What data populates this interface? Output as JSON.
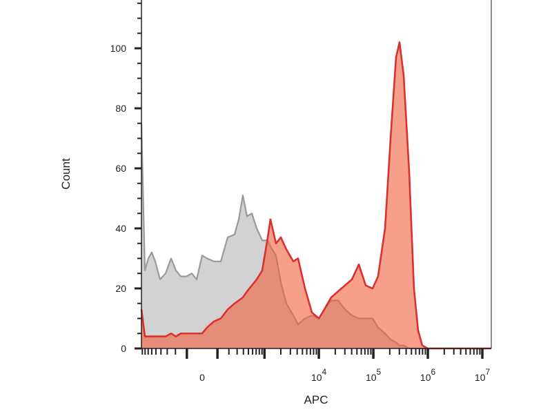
{
  "chart_data": {
    "type": "area",
    "title": "",
    "xlabel": "APC",
    "ylabel": "Count",
    "x_scale": "biexponential",
    "xlim": [
      -935,
      14600000
    ],
    "ylim": [
      0,
      115
    ],
    "grid": false,
    "y_ticks": [
      0,
      20,
      40,
      60,
      80,
      100
    ],
    "x_ticks": [
      {
        "value": 0,
        "base": "0",
        "exp": ""
      },
      {
        "value": 10000,
        "base": "10",
        "exp": "4"
      },
      {
        "value": 100000,
        "base": "10",
        "exp": "5"
      },
      {
        "value": 1000000,
        "base": "10",
        "exp": "6"
      },
      {
        "value": 10000000,
        "base": "10",
        "exp": "7"
      }
    ],
    "x": [
      -935,
      -806,
      -695,
      -598,
      -515,
      -416,
      -323,
      -249,
      -195,
      -149,
      -104,
      -65,
      -34,
      0,
      30,
      75,
      126,
      188,
      266,
      324,
      390,
      470,
      581,
      716,
      908,
      1149,
      1290,
      1630,
      2005,
      2530,
      3390,
      4150,
      5560,
      7450,
      10000,
      12600,
      16800,
      22500,
      30200,
      40400,
      54100,
      72400,
      96900,
      122000,
      164000,
      207000,
      261000,
      302000,
      360000,
      454000,
      556000,
      663000,
      790000,
      1000000,
      14600000
    ],
    "series": [
      {
        "color": "#999999",
        "fill": "#d2d2d2",
        "values": [
          75,
          26,
          30,
          32,
          29,
          23,
          25,
          30,
          26,
          24,
          24,
          25,
          23,
          31,
          30,
          29,
          29,
          37,
          38,
          43,
          51,
          44,
          45,
          40,
          36,
          36,
          34,
          31,
          22,
          15,
          11,
          8,
          10,
          11,
          10,
          13,
          16,
          16,
          13,
          11,
          10,
          10,
          10,
          7,
          5,
          3,
          2,
          1,
          1,
          0,
          0,
          0,
          0,
          0,
          0
        ]
      },
      {
        "color": "#d93030",
        "fill": "#f06040",
        "values": [
          13,
          4,
          4,
          4,
          4,
          4,
          4,
          5,
          4,
          5,
          5,
          5,
          5,
          5,
          7,
          9,
          10,
          13,
          15,
          16,
          17,
          19,
          21,
          23,
          26,
          37,
          43,
          35,
          37,
          33,
          29,
          30,
          20,
          12,
          10,
          13,
          17,
          19,
          21,
          23,
          28,
          21,
          20,
          24,
          40,
          70,
          97,
          102,
          91,
          59,
          20,
          6,
          1,
          0,
          0
        ]
      }
    ]
  }
}
